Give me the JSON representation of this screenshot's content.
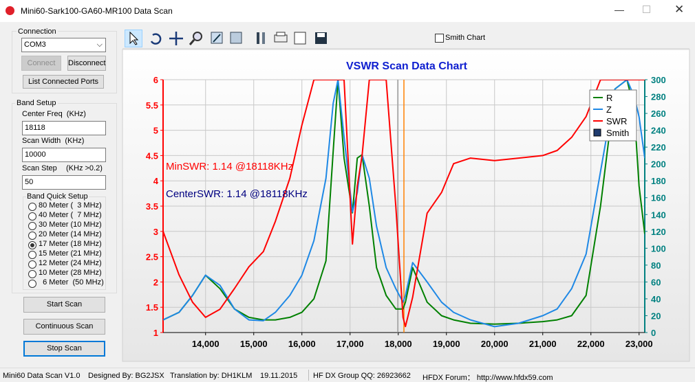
{
  "window": {
    "title": "Mini60-Sark100-GA60-MR100 Data Scan"
  },
  "connection": {
    "title": "Connection",
    "port": "COM3",
    "connect": "Connect",
    "disconnect": "Disconnect",
    "list_ports": "List Connected Ports"
  },
  "band_setup": {
    "title": "Band Setup",
    "center_label": "Center Freq  (KHz)",
    "center_value": "18118",
    "width_label": "Scan Width  (KHz)",
    "width_value": "10000",
    "step_label": "Scan Step",
    "step_hint": "(KHz >0.2)",
    "step_value": "50"
  },
  "band_quick_setup": {
    "title": "Band Quick Setup",
    "options": [
      "80 Meter (  3 MHz)",
      "40 Meter (  7 MHz)",
      "30 Meter (10 MHz)",
      "20 Meter (14 MHz)",
      "17 Meter (18 MHz)",
      "15 Meter (21 MHz)",
      "12 Meter (24 MHz)",
      "10 Meter (28 MHz)",
      "  6 Meter  (50 MHz)"
    ],
    "selected": 4
  },
  "buttons": {
    "start": "Start Scan",
    "continuous": "Continuous Scan",
    "stop": "Stop Scan"
  },
  "toolbar": {
    "smith_chart": "Smith Chart"
  },
  "status": [
    "Mini60 Data Scan V1.0",
    "Designed By: BG2JSX",
    "Translation by: DH1KLM",
    "19.11.2015",
    "HF DX Group QQ: 26923662",
    "HFDX Forum： http://www.hfdx59.com"
  ],
  "chart_data": {
    "type": "line",
    "title": "VSWR Scan Data Chart",
    "grid": true,
    "legend_position": "upper right",
    "y_color": "#ff0000",
    "y2_color": "#008080",
    "x": [
      13118,
      13450,
      13730,
      14000,
      14300,
      14600,
      14900,
      15200,
      15450,
      15750,
      16000,
      16250,
      16500,
      16650,
      16750,
      16875,
      17050,
      17150,
      17250,
      17400,
      17550,
      17750,
      17950,
      18100,
      18150,
      18300,
      18600,
      18900,
      19150,
      19500,
      20000,
      20500,
      21000,
      21300,
      21600,
      21900,
      22200,
      22500,
      22750,
      22900,
      23000,
      23118
    ],
    "xlim": [
      13118,
      23118
    ],
    "xticks": [
      {
        "value": 14000,
        "label": "14,000"
      },
      {
        "value": 15000,
        "label": "15,000"
      },
      {
        "value": 16000,
        "label": "16,000"
      },
      {
        "value": 17000,
        "label": "17,000"
      },
      {
        "value": 18000,
        "label": "18,000"
      },
      {
        "value": 19000,
        "label": "19,000"
      },
      {
        "value": 20000,
        "label": "20,000"
      },
      {
        "value": 21000,
        "label": "21,000"
      },
      {
        "value": 22000,
        "label": "22,000"
      },
      {
        "value": 23000,
        "label": "23,000"
      }
    ],
    "ylim": [
      1,
      6
    ],
    "yticks": [
      1,
      1.5,
      2,
      2.5,
      3,
      3.5,
      4,
      4.5,
      5,
      5.5,
      6
    ],
    "y2lim": [
      0,
      300
    ],
    "y2ticks": [
      0,
      20,
      40,
      60,
      80,
      100,
      120,
      140,
      160,
      180,
      200,
      220,
      240,
      260,
      280,
      300
    ],
    "series": [
      {
        "name": "R",
        "color": "#008000",
        "axis": "y2",
        "values": [
          15,
          24,
          44,
          68,
          52,
          28,
          18,
          15,
          15,
          18,
          24,
          40,
          85,
          215,
          300,
          207,
          142,
          207,
          211,
          150,
          77,
          44,
          28,
          28,
          36,
          77,
          36,
          20,
          15,
          11,
          10,
          11,
          13,
          15,
          20,
          44,
          150,
          289,
          300,
          264,
          174,
          117
        ]
      },
      {
        "name": "Z",
        "color": "#1e88e5",
        "axis": "y2",
        "values": [
          15,
          24,
          44,
          68,
          56,
          28,
          15,
          14,
          24,
          44,
          68,
          109,
          183,
          272,
          300,
          232,
          143,
          166,
          211,
          183,
          126,
          77,
          52,
          36,
          44,
          83,
          60,
          36,
          24,
          15,
          7,
          11,
          20,
          28,
          52,
          93,
          191,
          289,
          300,
          280,
          256,
          207
        ]
      },
      {
        "name": "SWR",
        "color": "#ff0000",
        "values": [
          3.0,
          2.14,
          1.6,
          1.3,
          1.46,
          1.87,
          2.3,
          2.6,
          3.2,
          4.05,
          5.1,
          6,
          6,
          6,
          6,
          6,
          2.75,
          3.9,
          4.5,
          6,
          6,
          6,
          3.5,
          1.3,
          1.12,
          1.7,
          3.36,
          3.77,
          4.34,
          4.45,
          4.4,
          4.45,
          4.5,
          4.6,
          4.86,
          5.27,
          6,
          6,
          6,
          6,
          6,
          6
        ]
      }
    ],
    "extra_legend": {
      "name": "Smith",
      "color": "#1f3b6e"
    },
    "markers": [
      {
        "x": 17990,
        "color": "#a0a0a0"
      },
      {
        "x": 18118,
        "color": "#ff8000"
      }
    ],
    "annotations": [
      {
        "text": "MinSWR: 1.14 @18118KHz",
        "color": "#ff0000"
      },
      {
        "text": "CenterSWR: 1.14 @18118KHz",
        "color": "#000080"
      }
    ]
  }
}
